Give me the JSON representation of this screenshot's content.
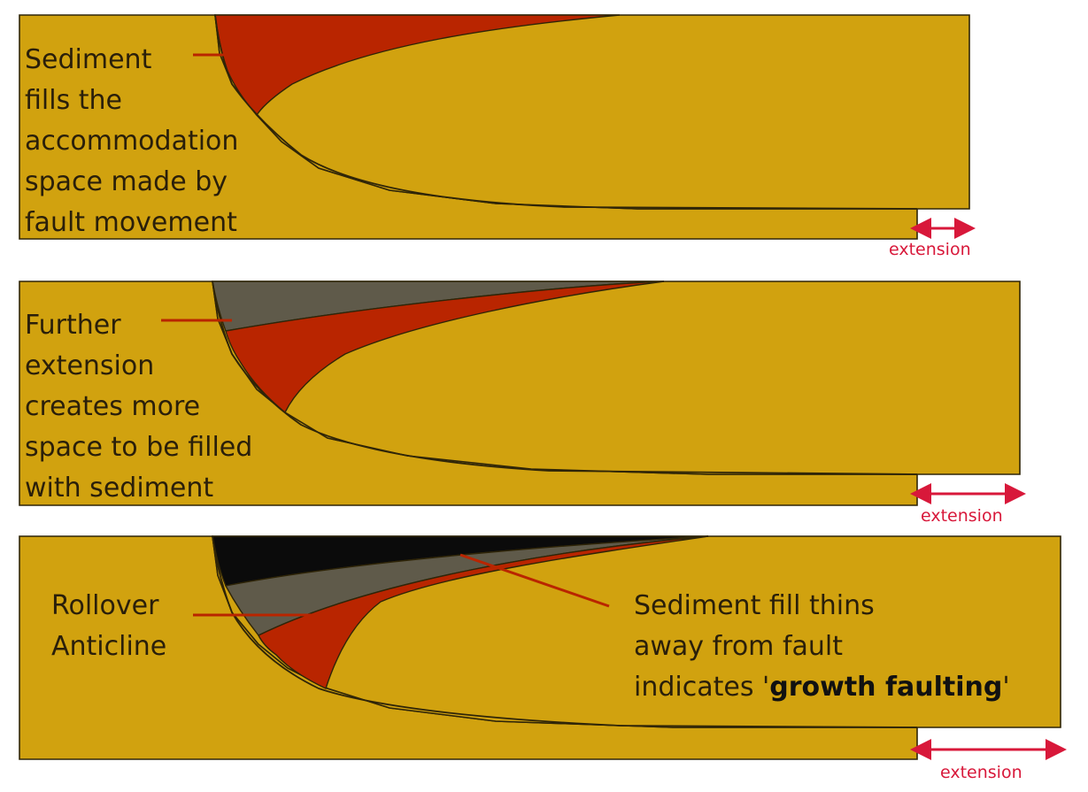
{
  "colors": {
    "rock": "#d1a20f",
    "sediment_1": "#b92500",
    "sediment_2": "#5f5a4a",
    "sediment_3": "#0b0b0b",
    "outline": "#2f2508",
    "arrow": "#d8183a"
  },
  "panels": [
    {
      "caption_lines": [
        "Sediment",
        "fills the",
        "accommodation",
        "space made by",
        "fault movement"
      ],
      "extension_label": "extension"
    },
    {
      "caption_lines": [
        "Further",
        "extension",
        "creates more",
        "space to be filled",
        "with sediment"
      ],
      "extension_label": "extension"
    },
    {
      "caption_lines": [
        "Rollover",
        "Anticline"
      ],
      "note": {
        "line1": "Sediment fill thins",
        "line2": "away from fault",
        "line3_prefix": "indicates '",
        "line3_bold": "growth faulting",
        "line3_suffix": "'"
      },
      "extension_label": "extension"
    }
  ]
}
